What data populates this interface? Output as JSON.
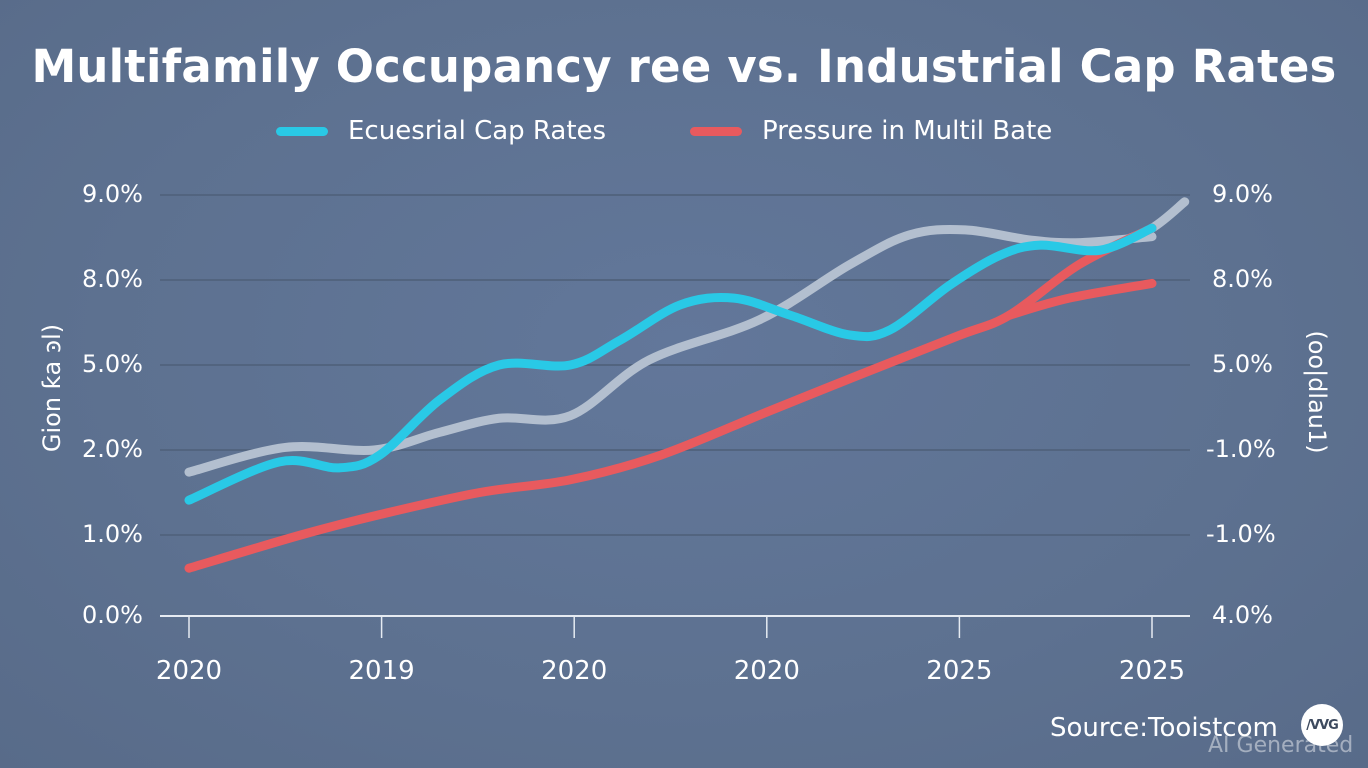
{
  "chart_data": {
    "type": "line",
    "title": "Multifamily Occupancy ree vs. Industrial Cap Rates",
    "legend": {
      "placement": "top-center",
      "entries": [
        {
          "label": "Ecuesrial Cap Rates",
          "color": "#29c9e6"
        },
        {
          "label": "Pressure in Multil Bate",
          "color": "#e85a5e"
        }
      ]
    },
    "x_tick_labels": [
      "2020",
      "2019",
      "2020",
      "2020",
      "2025",
      "2025"
    ],
    "y_left": {
      "label": "Gion ƙa ͽl)",
      "tick_labels": [
        "0.0%",
        "1.0%",
        "2.0%",
        "5.0%",
        "8.0%",
        "9.0%"
      ],
      "tick_values": [
        0,
        1,
        2,
        5,
        8,
        9
      ],
      "range": [
        0,
        9
      ]
    },
    "y_right": {
      "label": "(oo|dlau1)",
      "tick_labels": [
        "4.0%",
        "-1.0%",
        "-1.0%",
        "5.0%",
        "8.0%",
        "9.0%"
      ]
    },
    "grid": "horizontal",
    "x_note": "x values are positions along the category axis (0 = first tick, 5 = last tick)",
    "series": [
      {
        "name": "Ecuesrial Cap Rates",
        "color": "#29c9e6",
        "points": [
          [
            0,
            1.41
          ],
          [
            0.47,
            1.86
          ],
          [
            0.78,
            1.79
          ],
          [
            0.99,
            1.94
          ],
          [
            1.3,
            3.76
          ],
          [
            1.61,
            5.0
          ],
          [
            1.98,
            5.0
          ],
          [
            2.24,
            5.88
          ],
          [
            2.55,
            7.12
          ],
          [
            2.83,
            7.36
          ],
          [
            3.12,
            6.76
          ],
          [
            3.43,
            6.06
          ],
          [
            3.64,
            6.24
          ],
          [
            3.95,
            7.82
          ],
          [
            4.21,
            8.29
          ],
          [
            4.42,
            8.41
          ],
          [
            4.73,
            8.35
          ],
          [
            5.0,
            8.61
          ]
        ]
      },
      {
        "name": "Unlabeled gray series",
        "color": "#b3bfcf",
        "points": [
          [
            0,
            1.74
          ],
          [
            0.5,
            2.09
          ],
          [
            0.96,
            2.0
          ],
          [
            1.3,
            2.62
          ],
          [
            1.61,
            3.12
          ],
          [
            1.98,
            3.21
          ],
          [
            2.39,
            5.18
          ],
          [
            2.96,
            6.59
          ],
          [
            3.43,
            8.18
          ],
          [
            3.74,
            8.53
          ],
          [
            4.03,
            8.59
          ],
          [
            4.37,
            8.47
          ],
          [
            4.63,
            8.44
          ],
          [
            5.0,
            8.51
          ]
        ]
      },
      {
        "name": "Unlabeled gray series (extension)",
        "color": "#b3bfcf",
        "points": [
          [
            4.78,
            8.4
          ],
          [
            5.0,
            8.61
          ],
          [
            5.17,
            8.92
          ]
        ]
      },
      {
        "name": "Pressure in Multil Bate",
        "color": "#e85a5e",
        "points": [
          [
            0,
            0.59
          ],
          [
            0.58,
            1.0
          ],
          [
            0.99,
            1.24
          ],
          [
            1.51,
            1.5
          ],
          [
            1.98,
            1.65
          ],
          [
            2.45,
            1.94
          ],
          [
            3.0,
            3.34
          ],
          [
            3.48,
            4.65
          ],
          [
            3.99,
            6.02
          ],
          [
            4.26,
            6.76
          ],
          [
            4.62,
            8.18
          ],
          [
            5.0,
            8.61
          ]
        ]
      },
      {
        "name": "Pressure in Multil Bate (branch)",
        "color": "#e85a5e",
        "points": [
          [
            4.26,
            6.76
          ],
          [
            4.57,
            7.36
          ],
          [
            5.0,
            7.88
          ]
        ]
      }
    ]
  },
  "footer": {
    "source": "Source:Tooistcom",
    "watermark": "AI Generated",
    "logo_text": "/VVG"
  }
}
